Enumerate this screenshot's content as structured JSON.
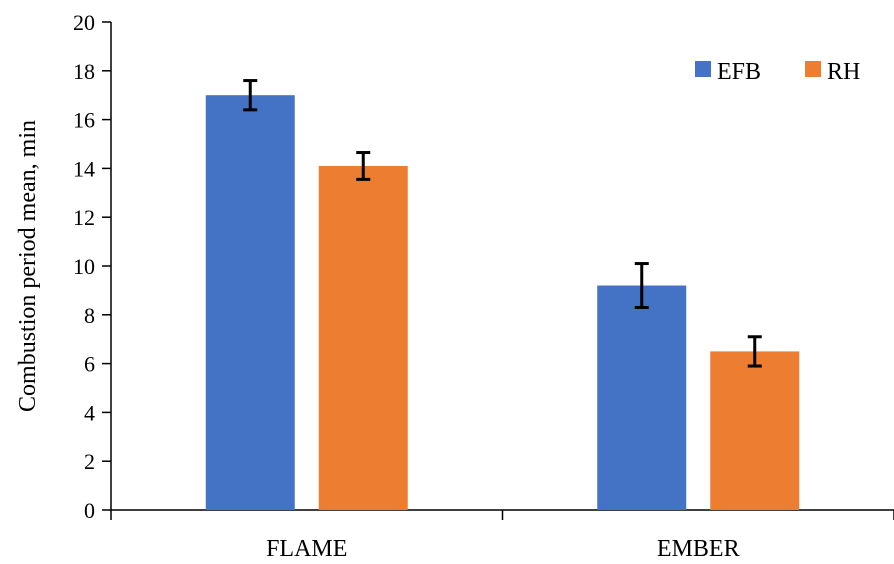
{
  "chart_data": {
    "type": "bar",
    "categories": [
      "FLAME",
      "EMBER"
    ],
    "series": [
      {
        "name": "EFB",
        "values": [
          17.0,
          9.2
        ],
        "errors": [
          0.6,
          0.9
        ],
        "color": "#4472C4"
      },
      {
        "name": "RH",
        "values": [
          14.1,
          6.5
        ],
        "errors": [
          0.55,
          0.6
        ],
        "color": "#ED7D31"
      }
    ],
    "title": "",
    "xlabel": "",
    "ylabel": "Combustion period mean, min",
    "ylim": [
      0,
      20
    ],
    "yticks": [
      "0",
      "2",
      "4",
      "6",
      "8",
      "10",
      "12",
      "14",
      "16",
      "18",
      "20"
    ],
    "grid": false,
    "legend_position": "top-right",
    "error_bars": true
  }
}
